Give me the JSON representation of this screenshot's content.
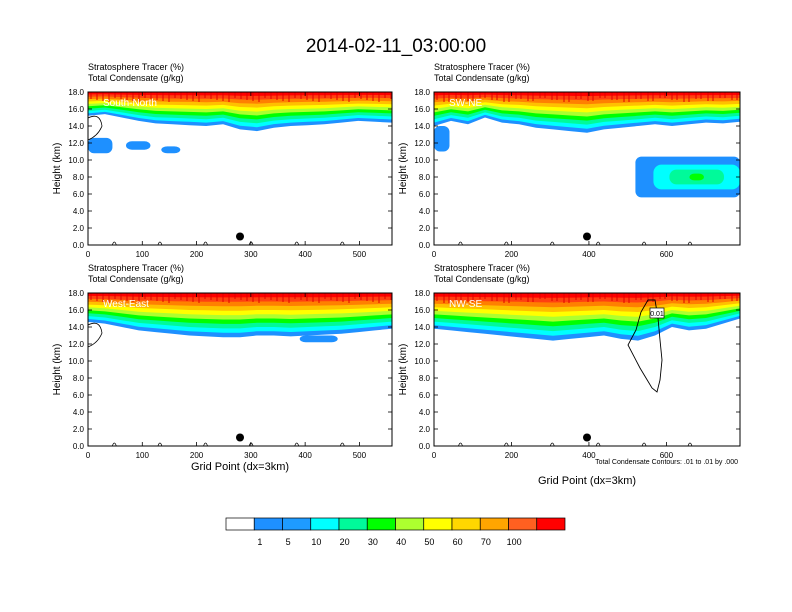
{
  "figure": {
    "title": "2014-02-11_03:00:00",
    "xlabel": "Grid Point (dx=3km)",
    "contour_note": "Total Condensate Contours: .01 to .01 by .000"
  },
  "colorbar": {
    "labels": [
      "1",
      "5",
      "10",
      "20",
      "30",
      "40",
      "50",
      "60",
      "70",
      "100"
    ],
    "colors": [
      "#ffffff",
      "#1e90ff",
      "#1e9bff",
      "#00ffff",
      "#00fa9a",
      "#00ff00",
      "#adff2f",
      "#ffff00",
      "#ffd700",
      "#ffa500",
      "#ff6020",
      "#ff0000"
    ]
  },
  "chart_data": [
    {
      "type": "heatmap",
      "panel": "South-North",
      "title_line1": "Stratosphere Tracer   (%)",
      "title_line2": "Total Condensate   (g/kg)",
      "ylabel": "Height (km)",
      "xlim": [
        0,
        560
      ],
      "ylim": [
        0,
        18
      ],
      "xticks": [
        "0",
        "100",
        "200",
        "300",
        "400",
        "500"
      ],
      "xtick_values": [
        0,
        100,
        200,
        300,
        400,
        500
      ],
      "yticks": [
        "0.0",
        "2.0",
        "4.0",
        "6.0",
        "8.0",
        "10.0",
        "12.0",
        "14.0",
        "16.0",
        "18.0"
      ],
      "ytick_values": [
        0,
        2,
        4,
        6,
        8,
        10,
        12,
        14,
        16,
        18
      ],
      "marker": {
        "x": 280,
        "y": 1.0
      },
      "tracer_base_km": [
        15.2,
        15.4,
        15.0,
        14.6,
        14.3,
        14.2,
        14.1,
        14.0,
        14.2,
        13.6,
        13.4,
        13.8,
        14.0,
        14.1,
        14.2,
        14.4,
        14.6,
        14.5,
        14.4
      ],
      "blue_patches": [
        {
          "x": [
            0,
            45
          ],
          "y": [
            10.8,
            12.6
          ]
        },
        {
          "x": [
            70,
            115
          ],
          "y": [
            11.2,
            12.2
          ]
        },
        {
          "x": [
            135,
            170
          ],
          "y": [
            10.8,
            11.6
          ]
        }
      ]
    },
    {
      "type": "heatmap",
      "panel": "SW-NE",
      "title_line1": "Stratosphere Tracer   (%)",
      "title_line2": "Total Condensate   (g/kg)",
      "ylabel": "Height (km)",
      "xlim": [
        0,
        790
      ],
      "ylim": [
        0,
        18
      ],
      "xticks": [
        "0",
        "200",
        "400",
        "600"
      ],
      "xtick_values": [
        0,
        200,
        400,
        600
      ],
      "yticks": [
        "0.0",
        "2.0",
        "4.0",
        "6.0",
        "8.0",
        "10.0",
        "12.0",
        "14.0",
        "16.0",
        "18.0"
      ],
      "ytick_values": [
        0,
        2,
        4,
        6,
        8,
        10,
        12,
        14,
        16,
        18
      ],
      "marker": {
        "x": 395,
        "y": 1.0
      },
      "tracer_base_km": [
        14.0,
        14.6,
        14.2,
        15.0,
        14.4,
        14.2,
        13.8,
        13.6,
        13.4,
        13.2,
        13.6,
        13.8,
        14.0,
        14.2,
        14.0,
        14.2,
        14.4,
        14.3,
        14.5
      ],
      "blue_patches": [
        {
          "x": [
            0,
            40
          ],
          "y": [
            11.0,
            14.0
          ]
        },
        {
          "x": [
            520,
            790
          ],
          "y": [
            5.6,
            10.4
          ]
        }
      ]
    },
    {
      "type": "heatmap",
      "panel": "West-East",
      "title_line1": "Stratosphere Tracer   (%)",
      "title_line2": "Total Condensate   (g/kg)",
      "ylabel": "Height (km)",
      "xlim": [
        0,
        560
      ],
      "ylim": [
        0,
        18
      ],
      "xticks": [
        "0",
        "100",
        "200",
        "300",
        "400",
        "500"
      ],
      "xtick_values": [
        0,
        100,
        200,
        300,
        400,
        500
      ],
      "yticks": [
        "0.0",
        "2.0",
        "4.0",
        "6.0",
        "8.0",
        "10.0",
        "12.0",
        "14.0",
        "16.0",
        "18.0"
      ],
      "ytick_values": [
        0,
        2,
        4,
        6,
        8,
        10,
        12,
        14,
        16,
        18
      ],
      "marker": {
        "x": 280,
        "y": 1.0
      },
      "tracer_base_km": [
        14.6,
        14.4,
        14.0,
        13.6,
        13.4,
        13.2,
        13.0,
        12.9,
        12.8,
        12.8,
        13.0,
        13.0,
        12.9,
        13.0,
        13.1,
        13.2,
        13.4,
        13.6,
        13.8
      ],
      "blue_patches": [
        {
          "x": [
            390,
            460
          ],
          "y": [
            12.2,
            13.0
          ]
        }
      ]
    },
    {
      "type": "heatmap",
      "panel": "NW-SE",
      "title_line1": "Stratosphere Tracer   (%)",
      "title_line2": "Total Condensate   (g/kg)",
      "ylabel": "Height (km)",
      "xlim": [
        0,
        790
      ],
      "ylim": [
        0,
        18
      ],
      "xticks": [
        "0",
        "200",
        "400",
        "600"
      ],
      "xtick_values": [
        0,
        200,
        400,
        600
      ],
      "yticks": [
        "0.0",
        "2.0",
        "4.0",
        "6.0",
        "8.0",
        "10.0",
        "12.0",
        "14.0",
        "16.0",
        "18.0"
      ],
      "ytick_values": [
        0,
        2,
        4,
        6,
        8,
        10,
        12,
        14,
        16,
        18
      ],
      "marker": {
        "x": 395,
        "y": 1.0
      },
      "contour_label": "0.01",
      "tracer_base_km": [
        13.8,
        13.6,
        13.4,
        13.2,
        13.0,
        12.8,
        12.6,
        12.4,
        12.6,
        12.8,
        13.0,
        12.6,
        12.4,
        13.0,
        14.0,
        13.6,
        13.8,
        14.4,
        15.0
      ],
      "blue_patches": []
    }
  ]
}
